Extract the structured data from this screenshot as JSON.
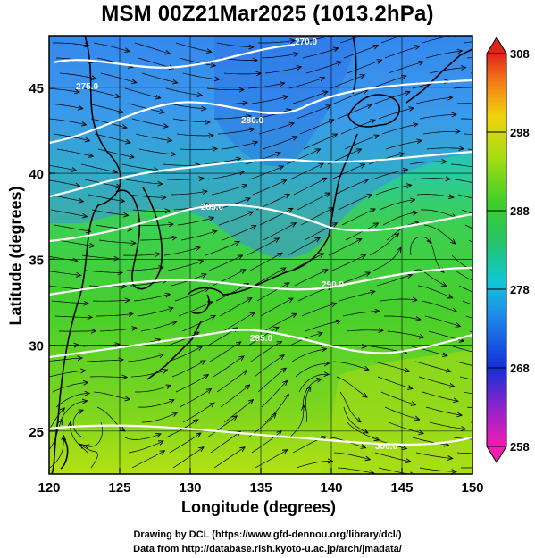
{
  "map_title": "MSM 00Z21Mar2025 (1013.2hPa)",
  "x_axis_label": "Longitude (degrees)",
  "y_axis_label": "Latitude  (degrees)",
  "x_ticks": [
    "120",
    "125",
    "130",
    "135",
    "140",
    "145",
    "150"
  ],
  "y_ticks": [
    "25",
    "30",
    "35",
    "40",
    "45"
  ],
  "colorbar_ticks": [
    "258",
    "268",
    "278",
    "288",
    "298",
    "308"
  ],
  "contour_labels": [
    "300.0",
    "295.0",
    "290.0",
    "285.0",
    "280.0",
    "275.0",
    "270.0"
  ],
  "credit_line_1": "Drawing by DCL (https://www.gfd-dennou.org/library/dcl/)",
  "credit_line_2": "Data from http://database.rish.kyoto-u.ac.jp/arch/jmadata/",
  "map_extent": {
    "lon": [
      120,
      150
    ],
    "lat": [
      22.5,
      48
    ]
  },
  "colorbar_range": [
    258,
    308
  ],
  "colors": {
    "contour": "#ffffff",
    "streamline": "#000000",
    "coastline": "#000000"
  },
  "features": [
    "temperature-shading",
    "streamlines",
    "isotherms",
    "coastlines"
  ]
}
